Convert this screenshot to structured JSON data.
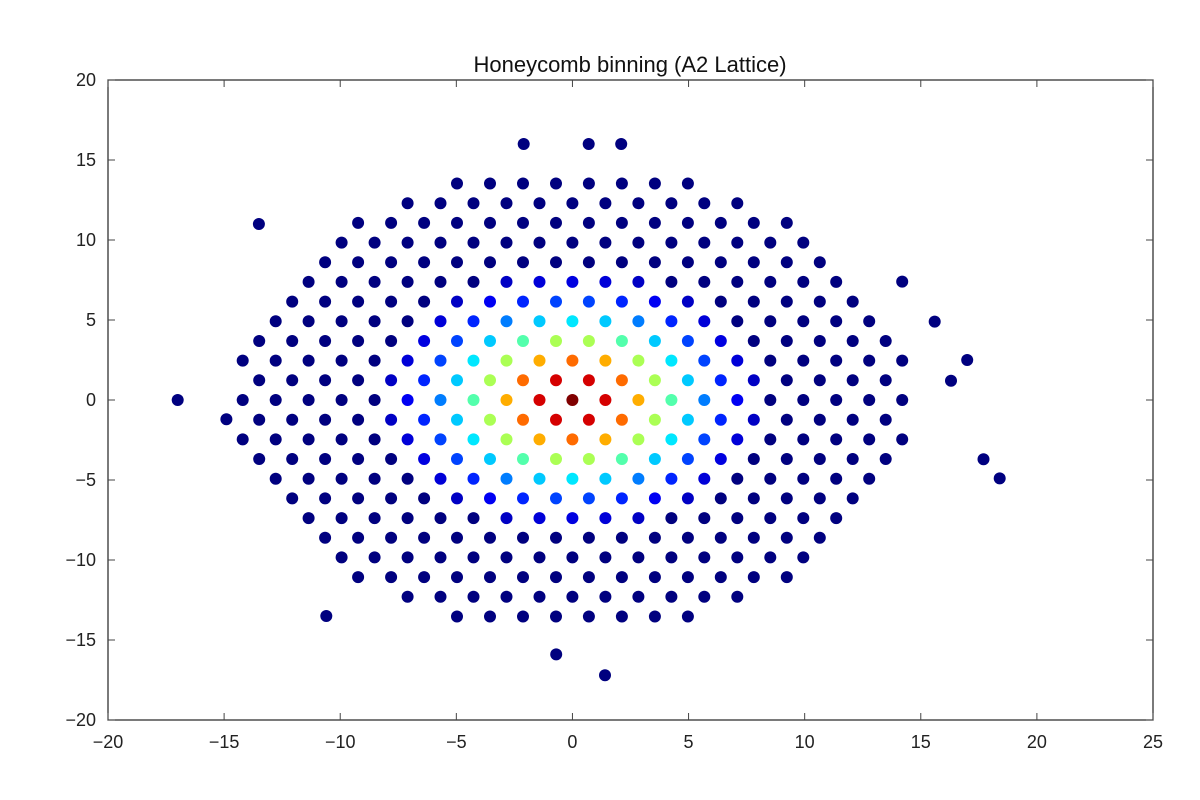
{
  "chart_data": {
    "type": "scatter",
    "title": "Honeycomb binning (A2 Lattice)",
    "xlabel": "",
    "ylabel": "",
    "xlim": [
      -20,
      25
    ],
    "ylim": [
      -20,
      20
    ],
    "xticks": [
      -20,
      -15,
      -10,
      -5,
      0,
      5,
      10,
      15,
      20,
      25
    ],
    "yticks": [
      -20,
      -15,
      -10,
      -5,
      0,
      5,
      10,
      15,
      20
    ],
    "xtick_labels": [
      "−20",
      "−15",
      "−10",
      "−5",
      "0",
      "5",
      "10",
      "15",
      "20",
      "25"
    ],
    "ytick_labels": [
      "−20",
      "−15",
      "−10",
      "−5",
      "0",
      "5",
      "10",
      "15",
      "20"
    ],
    "grid": false,
    "colormap": "jet",
    "lattice": {
      "x_spacing": 1.42,
      "row_spacing": 1.23,
      "extreme_points": [
        [
          -17.0,
          0
        ],
        [
          -14.9,
          -1.2
        ],
        [
          -13.5,
          11.0
        ],
        [
          -10.6,
          -13.5
        ],
        [
          -0.7,
          -15.9
        ],
        [
          1.4,
          -17.2
        ],
        [
          14.2,
          7.4
        ],
        [
          15.6,
          4.9
        ],
        [
          17.0,
          2.5
        ],
        [
          16.3,
          1.2
        ],
        [
          17.7,
          -3.7
        ],
        [
          18.4,
          -4.9
        ],
        [
          -2.1,
          16.0
        ],
        [
          0.7,
          16.0
        ],
        [
          2.1,
          16.0
        ]
      ]
    }
  }
}
